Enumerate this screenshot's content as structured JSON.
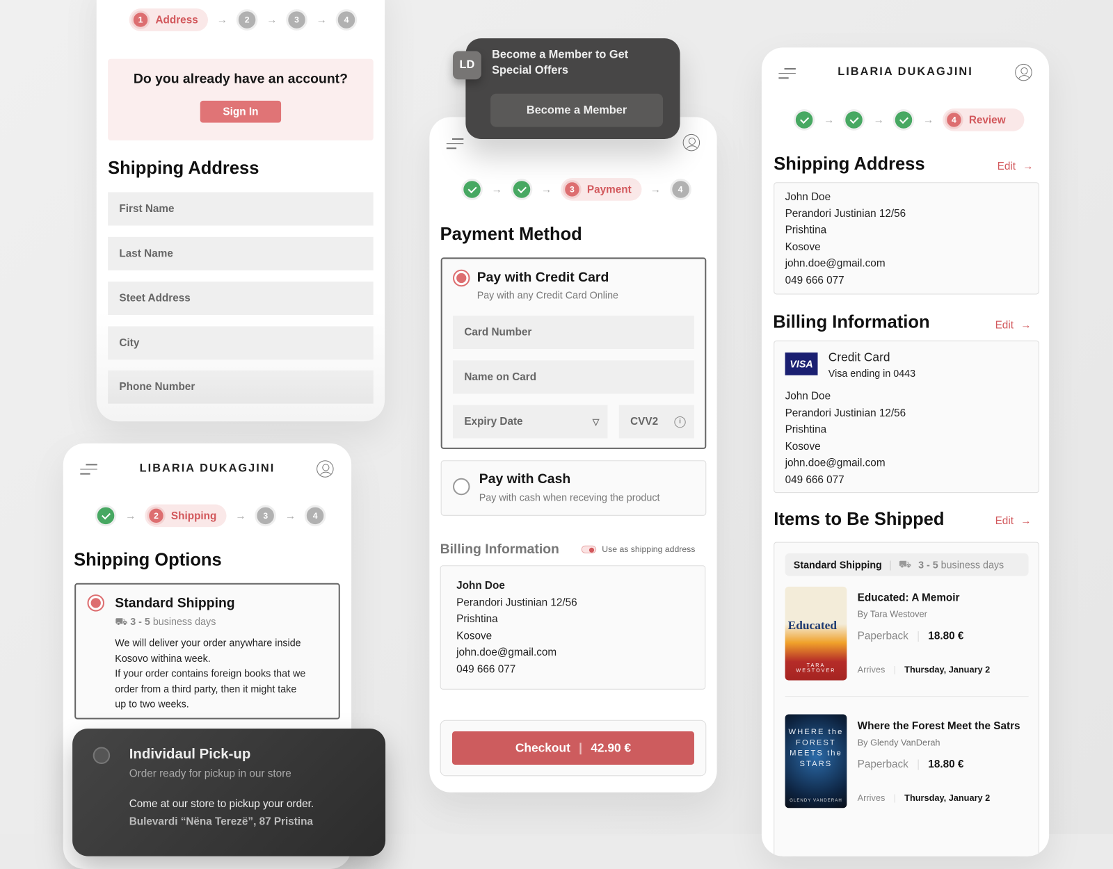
{
  "brand": "LIBARIA DUKAGJINI",
  "colors": {
    "accent": "#dd6e70",
    "success": "#47a862",
    "dark_card": "#474646"
  },
  "panel_address": {
    "stepper": {
      "active_number": "1",
      "active_label": "Address",
      "steps": [
        "2",
        "3",
        "4"
      ]
    },
    "account_prompt": "Do you already have an account?",
    "sign_in": "Sign In",
    "title": "Shipping Address",
    "fields": [
      "First Name",
      "Last Name",
      "Steet Address",
      "City",
      "Phone Number"
    ]
  },
  "panel_shipping": {
    "stepper": {
      "active_number": "2",
      "active_label": "Shipping",
      "steps": [
        "3",
        "4"
      ]
    },
    "title": "Shipping Options",
    "standard": {
      "title": "Standard Shipping",
      "days_bold": "3 - 5",
      "days": "business days",
      "description": [
        "We will deliver your order anywhare inside",
        "Kosovo withina week.",
        "If your order contains foreign books that we",
        "order from a third party, then it might take",
        "up to two weeks."
      ]
    },
    "pickup": {
      "title": "Individaul Pick-up",
      "subtitle": "Order ready for pickup in our store",
      "line1": "Come at our store to pickup your order.",
      "address": "Bulevardi “Nëna Terezë”, 87 Pristina"
    }
  },
  "popup": {
    "logo": "LD",
    "title_line1": "Become a Member to Get",
    "title_line2": "Special Offers",
    "button": "Become a Member"
  },
  "panel_payment": {
    "stepper": {
      "active_number": "3",
      "active_label": "Payment",
      "steps": [
        "4"
      ]
    },
    "title": "Payment Method",
    "credit": {
      "title": "Pay with Credit Card",
      "subtitle": "Pay with any Credit Card Online",
      "card_number": "Card Number",
      "name_on_card": "Name on Card",
      "expiry": "Expiry Date",
      "cvv": "CVV2"
    },
    "cash": {
      "title": "Pay with Cash",
      "subtitle": "Pay with cash when receving the product"
    },
    "billing_title": "Billing Information",
    "toggle_label": "Use as shipping address",
    "toggle_on": true,
    "billing": [
      "John Doe",
      "Perandori Justinian 12/56",
      "Prishtina",
      "Kosove",
      "john.doe@gmail.com",
      "049 666 077"
    ],
    "checkout_label": "Checkout",
    "checkout_total": "42.90 €"
  },
  "panel_review": {
    "stepper": {
      "active_number": "4",
      "active_label": "Review"
    },
    "edit": "Edit",
    "shipping_title": "Shipping Address",
    "shipping": [
      "John Doe",
      "Perandori Justinian 12/56",
      "Prishtina",
      "Kosove",
      "john.doe@gmail.com",
      "049 666 077"
    ],
    "billing_title": "Billing Information",
    "card_brand": "VISA",
    "card_title": "Credit Card",
    "card_sub": "Visa ending in 0443",
    "billing": [
      "John Doe",
      "Perandori Justinian 12/56",
      "Prishtina",
      "Kosove",
      "john.doe@gmail.com",
      "049 666 077"
    ],
    "items_title": "Items to Be Shipped",
    "ship_method": "Standard Shipping",
    "ship_days_bold": "3 - 5",
    "ship_days": "business days",
    "items": [
      {
        "title": "Educated: A Memoir",
        "author": "By Tara Westover",
        "format": "Paperback",
        "price": "18.80 €",
        "arrives_label": "Arrives",
        "arrives": "Thursday, January 2",
        "cover_text": "Educated",
        "cover_author": "TARA WESTOVER"
      },
      {
        "title": "Where the Forest Meet the Satrs",
        "author": "By Glendy VanDerah",
        "format": "Paperback",
        "price": "18.80 €",
        "arrives_label": "Arrives",
        "arrives": "Thursday, January 2",
        "cover_text": "WHERE the FOREST MEETS the STARS",
        "cover_author": "GLENDY VANDERAH"
      }
    ]
  }
}
